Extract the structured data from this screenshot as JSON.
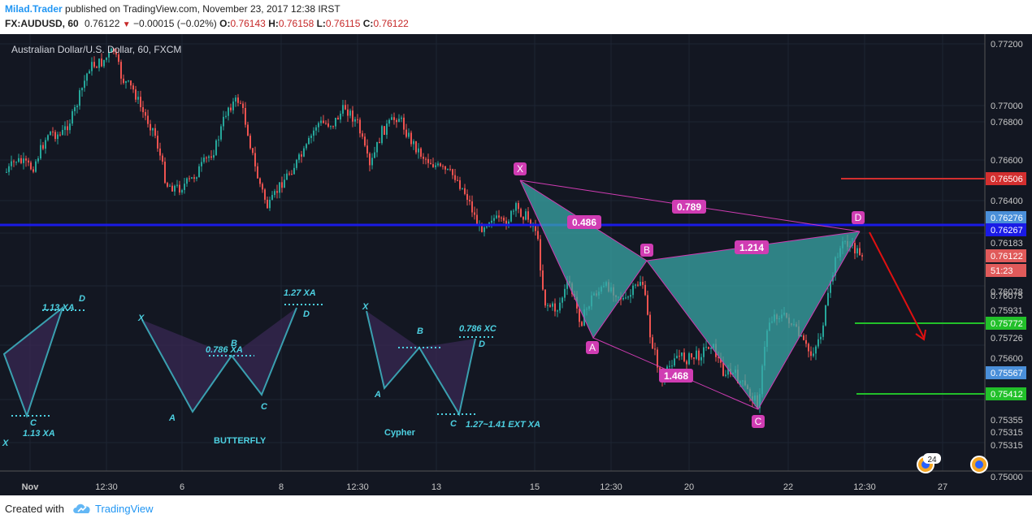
{
  "header": {
    "author": "Milad.Trader",
    "published_text": "published on TradingView.com, November 23, 2017 12:38 IRST",
    "symbol": "FX:AUDUSD, 60",
    "last": "0.76122",
    "change": "−0.00015 (−0.02%)",
    "open_label": "O:",
    "open": "0.76143",
    "high_label": "H:",
    "high": "0.76158",
    "low_label": "L:",
    "low": "0.76115",
    "close_label": "C:",
    "close": "0.76122"
  },
  "chart": {
    "title": "Australian Dollar/U.S. Dollar, 60, FXCM",
    "price_ticks": [
      "0.77200",
      "0.77000",
      "0.76800",
      "0.76600",
      "0.76400",
      "0.76183",
      "0.76078",
      "0.76075",
      "0.75931",
      "0.75726",
      "0.75600",
      "0.75355",
      "0.75315",
      "0.75315",
      "0.75000"
    ],
    "price_badges": [
      {
        "text": "0.76506",
        "color": "#d32f2f"
      },
      {
        "text": "0.76276",
        "color": "#4a8fd9"
      },
      {
        "text": "0.76267",
        "color": "#1a1ae6"
      },
      {
        "text": "0.76122",
        "color": "#e05a5a"
      },
      {
        "text": "51:23",
        "color": "#e05a5a"
      },
      {
        "text": "0.75772",
        "color": "#22c02a"
      },
      {
        "text": "0.75567",
        "color": "#4a8fd9"
      },
      {
        "text": "0.75412",
        "color": "#22c02a"
      }
    ],
    "time_ticks": [
      "Nov",
      "12:30",
      "6",
      "8",
      "12:30",
      "13",
      "15",
      "12:30",
      "20",
      "22",
      "12:30",
      "27"
    ],
    "pattern_points": [
      "X",
      "A",
      "B",
      "C",
      "D"
    ],
    "ratios": [
      "0.486",
      "0.789",
      "1.214",
      "1.468"
    ],
    "events_count": "24"
  },
  "legend_patterns": {
    "left": {
      "d_label": "D",
      "c_label": "C",
      "top_ratio": "1.13 XA",
      "bottom_ratio": "1.13 XA",
      "x_label": "X"
    },
    "butterfly": {
      "x": "X",
      "a": "A",
      "b": "B",
      "c": "C",
      "d": "D",
      "ratio_b": "0.786 XA",
      "ratio_d": "1.27 XA",
      "name": "BUTTERFLY"
    },
    "cypher": {
      "x": "X",
      "a": "A",
      "b": "B",
      "c": "C",
      "d": "D",
      "ratio_d": "0.786 XC",
      "ratio_c": "1.27~1.41 EXT XA",
      "name": "Cypher"
    }
  },
  "colors": {
    "background": "#131722",
    "bull": "#26a69a",
    "bear": "#ef5350",
    "pattern_fill": "#3aa7a7",
    "pattern_line": "#d03cb3",
    "support_line": "#1a1ae6",
    "target_green": "#22c02a",
    "stop_red": "#d32f2f",
    "legend_cyan": "#4dd0e1",
    "author": "#2196f3"
  },
  "footer": {
    "made_with": "Created with",
    "brand": "TradingView"
  }
}
